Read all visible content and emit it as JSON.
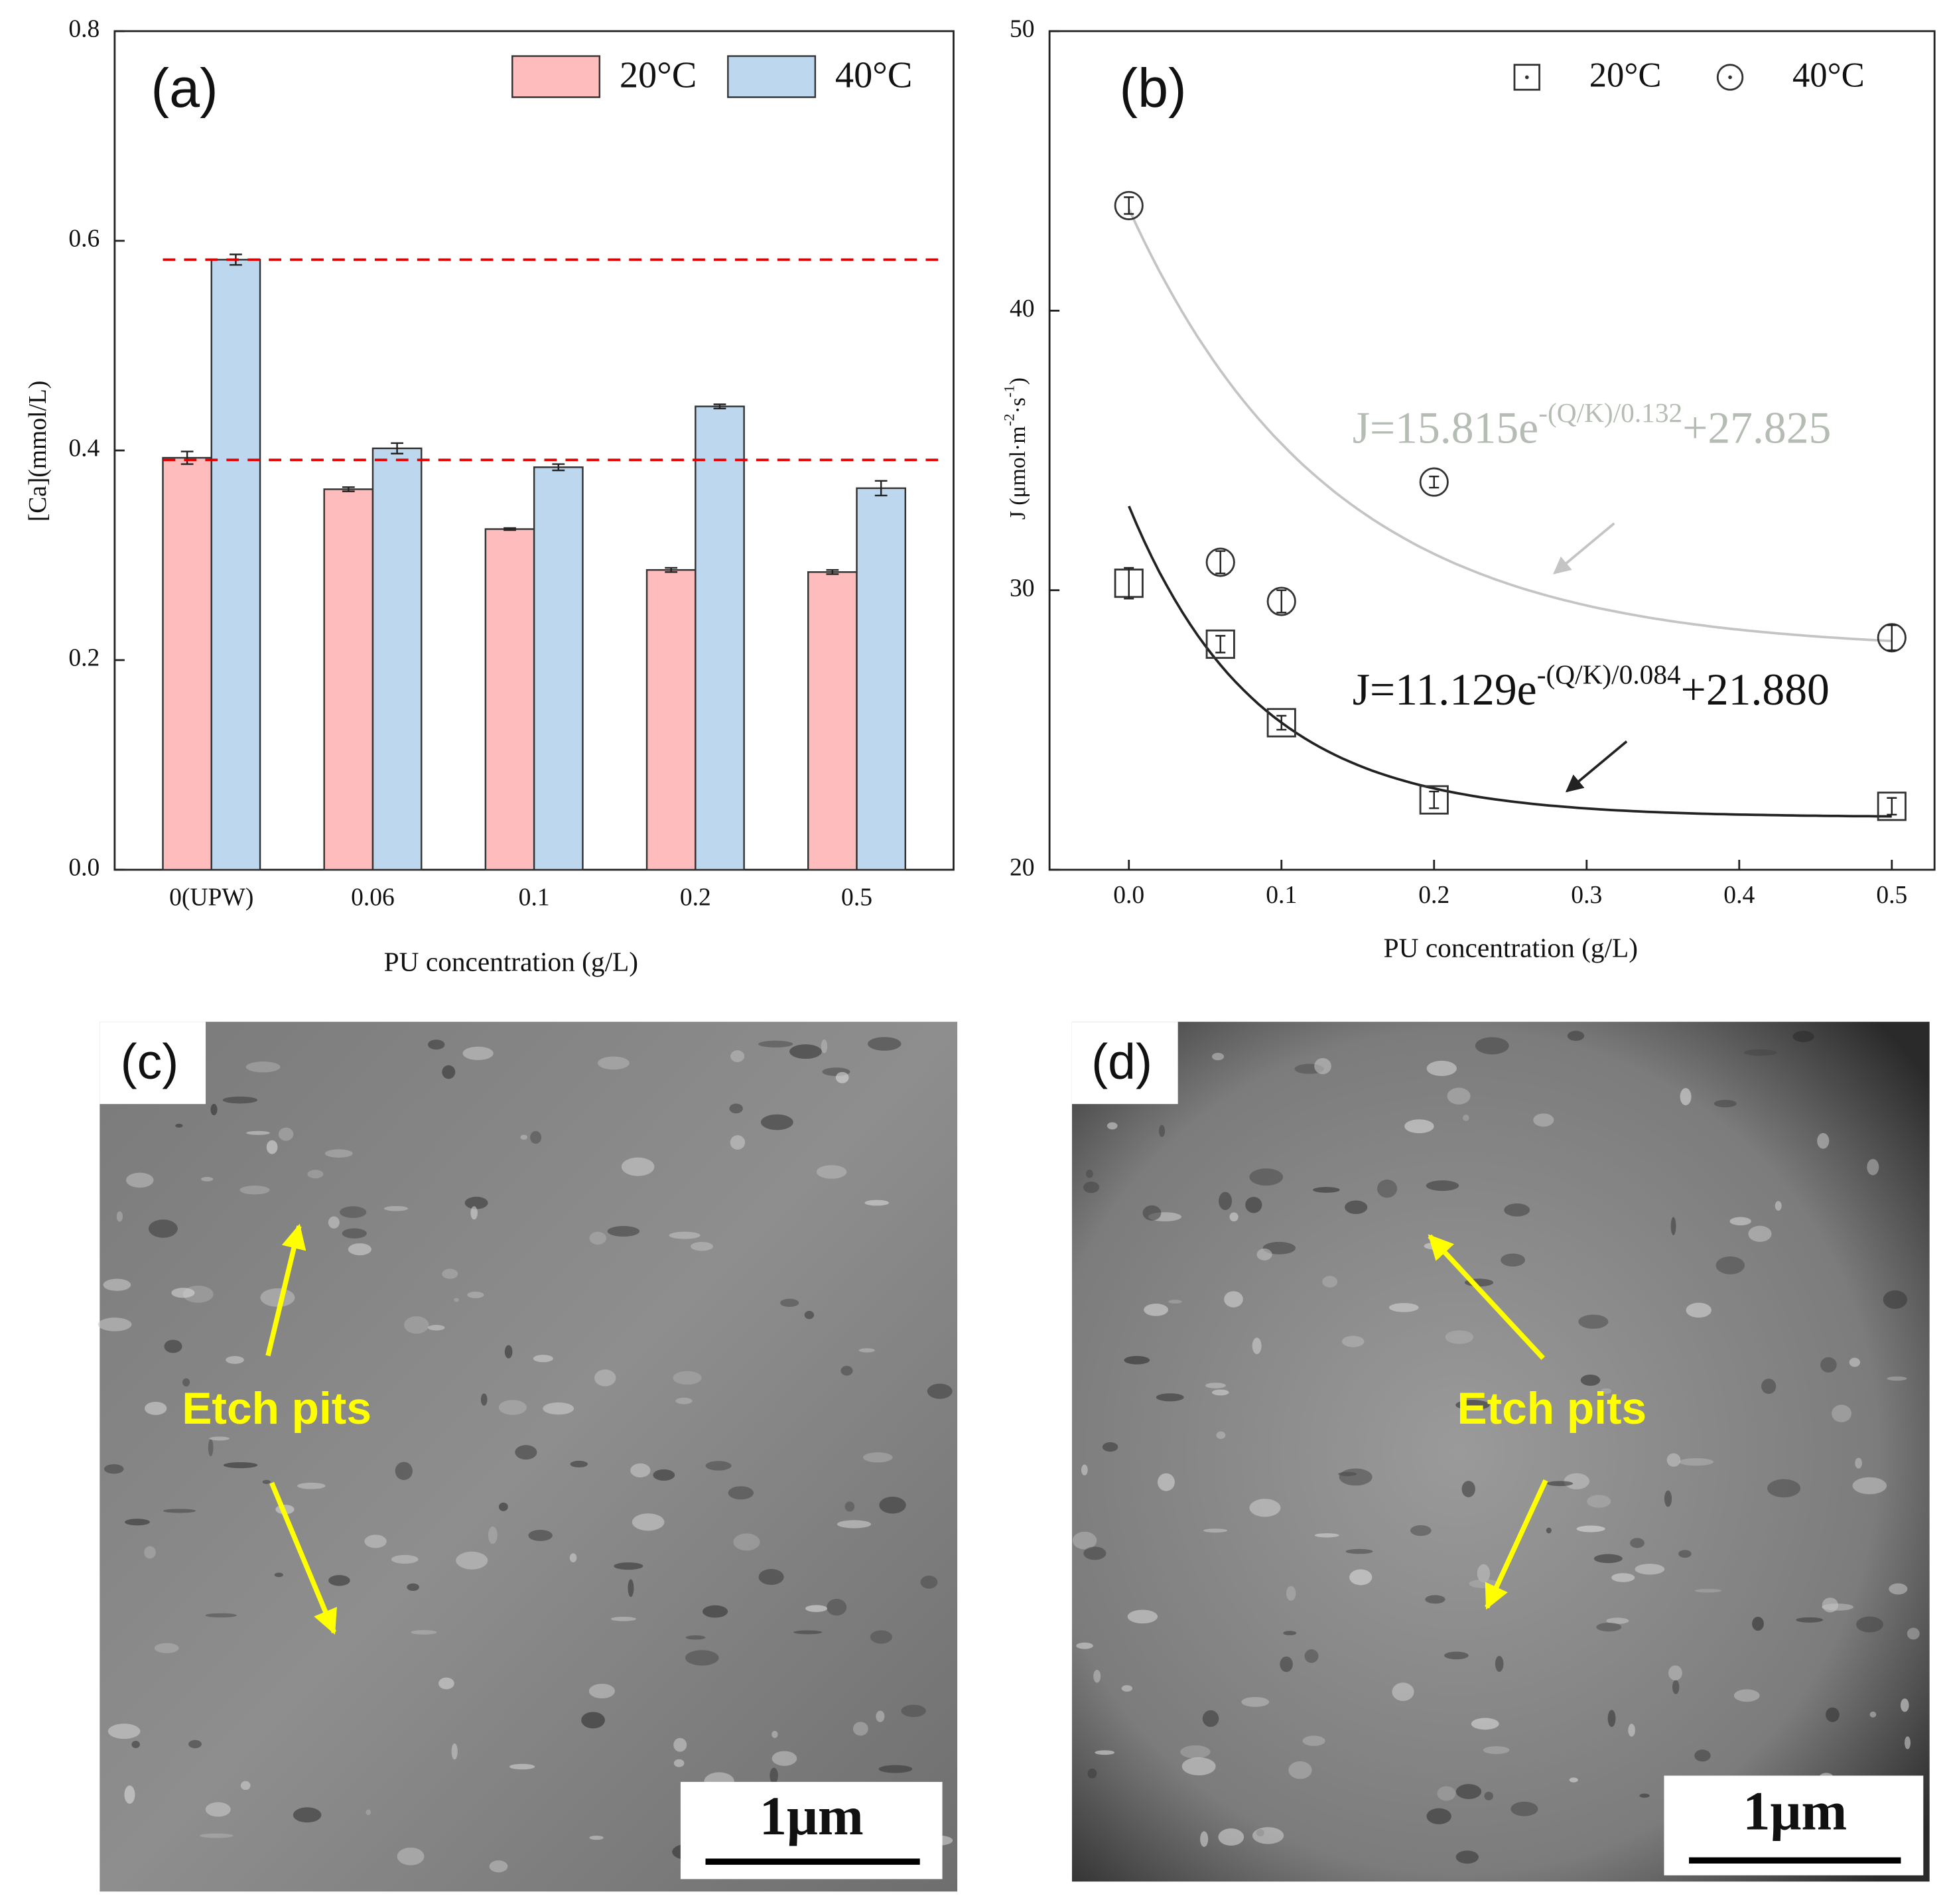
{
  "chart_data": [
    {
      "type": "bar",
      "label": "(a)",
      "categories": [
        "0(UPW)",
        "0.06",
        "0.1",
        "0.2",
        "0.5"
      ],
      "series": [
        {
          "name": "20°C",
          "color": "#ffbcbc",
          "values": [
            0.393,
            0.363,
            0.325,
            0.286,
            0.284
          ],
          "errors": [
            0.006,
            0.002,
            0.001,
            0.002,
            0.002
          ]
        },
        {
          "name": "40°C",
          "color": "#bdd7ee",
          "values": [
            0.582,
            0.402,
            0.384,
            0.442,
            0.364
          ],
          "errors": [
            0.005,
            0.005,
            0.003,
            0.002,
            0.007
          ]
        }
      ],
      "reference_lines": [
        0.582,
        0.391
      ],
      "reference_color": "#e00000",
      "ylim": [
        0,
        0.8
      ],
      "yticks": [
        {
          "value": 0,
          "label": "0.0"
        },
        0.2,
        0.4,
        0.6,
        0.8
      ],
      "x_label": "PU concentration (g/L)",
      "y_label": "[Ca](mmol/L)"
    },
    {
      "type": "scatter",
      "label": "(b)",
      "x": [
        0,
        0.06,
        0.1,
        0.2,
        0.5
      ],
      "series": [
        {
          "name": "20°C",
          "marker": "square",
          "color": "#333333",
          "values": [
            30.25,
            28.07,
            25.26,
            22.5,
            22.27
          ],
          "errors": [
            0.55,
            0.3,
            0.25,
            0.3,
            0.3
          ],
          "fit": {
            "a": 11.129,
            "tau": 0.084,
            "c": 21.88
          },
          "fit_color": "#222222",
          "annotation": [
            {
              "text": "J=11.129e"
            },
            {
              "sup": "-(Q/K)/0.084"
            },
            {
              "text": "+21.880"
            }
          ],
          "annotation_color": "#111111"
        },
        {
          "name": "40°C",
          "marker": "circle",
          "color": "#333333",
          "values": [
            43.76,
            31.0,
            29.6,
            33.87,
            28.3
          ],
          "errors": [
            0.3,
            0.4,
            0.4,
            0.2,
            0.45
          ],
          "fit": {
            "a": 15.815,
            "tau": 0.132,
            "c": 27.825
          },
          "fit_color": "#c4c4c4",
          "annotation": [
            {
              "text": "J=15.815e"
            },
            {
              "sup": "-(Q/K)/0.132"
            },
            {
              "text": "+27.825"
            }
          ],
          "annotation_color": "#b4bcb4"
        }
      ],
      "xlim": [
        -0.052,
        0.528
      ],
      "ylim": [
        20,
        50
      ],
      "xticks": [
        {
          "value": 0,
          "label": "0.0"
        },
        0.1,
        0.2,
        0.3,
        0.4,
        0.5
      ],
      "yticks": [
        20,
        30,
        40,
        50
      ],
      "x_label": "PU  concentration  (g/L)",
      "y_label": [
        {
          "text": "J (μmol·m"
        },
        {
          "sup": "-2"
        },
        {
          "text": "·s"
        },
        {
          "sup": "-1"
        },
        {
          "text": ")"
        }
      ]
    }
  ],
  "images": [
    {
      "label": "(c)",
      "annotation": "Etch pits",
      "scale_bar": "1μm"
    },
    {
      "label": "(d)",
      "annotation": "Etch pits",
      "scale_bar": "1μm"
    }
  ]
}
